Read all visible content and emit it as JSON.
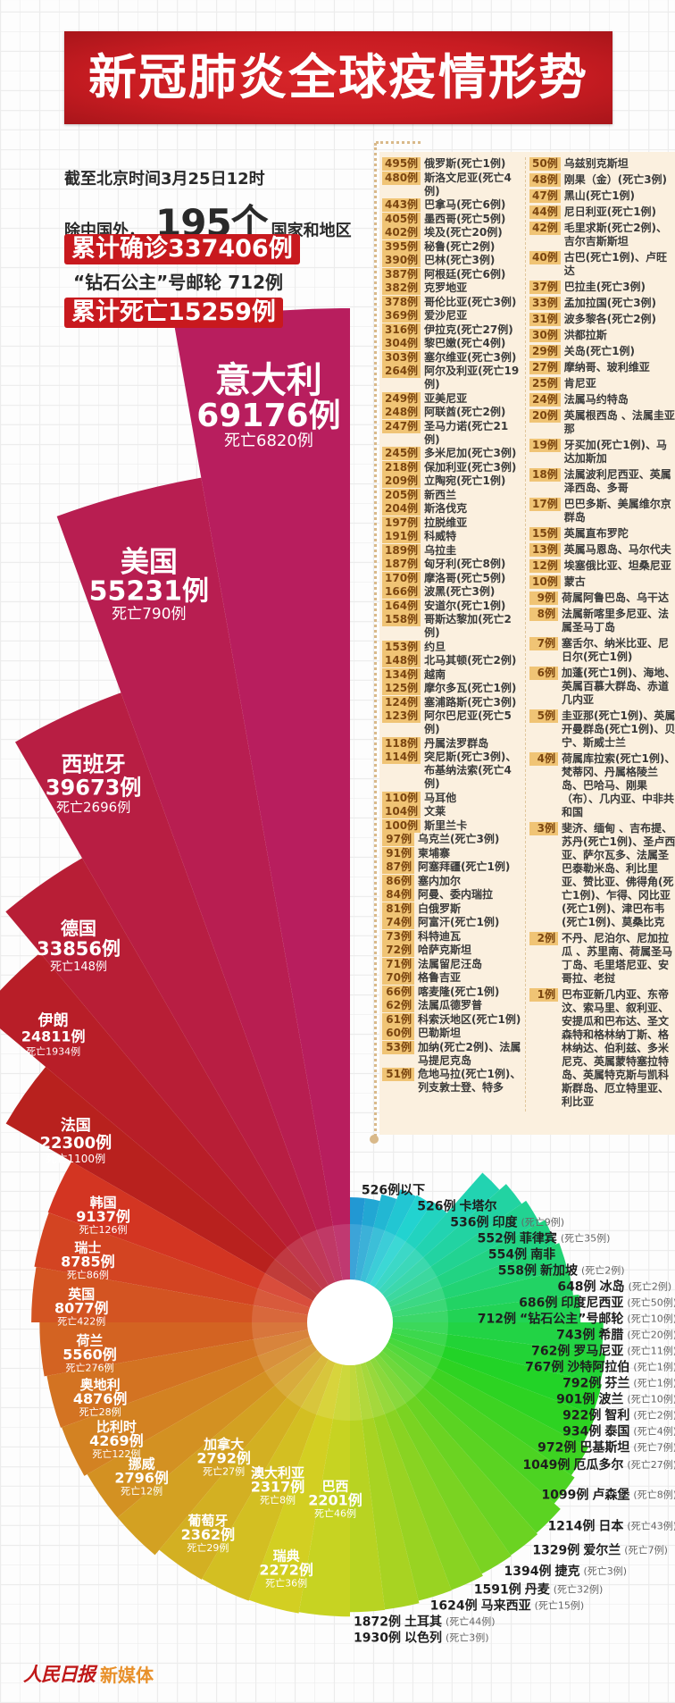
{
  "header": {
    "title": "新冠肺炎全球疫情形势"
  },
  "stats": {
    "as_of": "截至北京时间3月25日12时",
    "countries_prefix": "除中国外，",
    "countries_count": "195个",
    "countries_suffix": "国家和地区",
    "total_confirmed": "累计确诊337406例",
    "cruise_ship": "“钻石公主”号邮轮 712例",
    "total_deaths": "累计死亡15259例"
  },
  "colors": {
    "banner": "#c8191e",
    "badge": "#f0c475",
    "list_bg": "#fbf0df",
    "logo_red": "#c01818",
    "logo_orange": "#e8902a"
  },
  "list": {
    "left": [
      {
        "count": "495例",
        "text": "俄罗斯(死亡1例)"
      },
      {
        "count": "480例",
        "text": "斯洛文尼亚(死亡4例)"
      },
      {
        "count": "443例",
        "text": "巴拿马(死亡6例)"
      },
      {
        "count": "405例",
        "text": "墨西哥(死亡5例)"
      },
      {
        "count": "402例",
        "text": "埃及(死亡20例)"
      },
      {
        "count": "395例",
        "text": "秘鲁(死亡2例)"
      },
      {
        "count": "390例",
        "text": "巴林(死亡3例)"
      },
      {
        "count": "387例",
        "text": "阿根廷(死亡6例)"
      },
      {
        "count": "382例",
        "text": "克罗地亚"
      },
      {
        "count": "378例",
        "text": "哥伦比亚(死亡3例)"
      },
      {
        "count": "369例",
        "text": "爱沙尼亚"
      },
      {
        "count": "316例",
        "text": "伊拉克(死亡27例)"
      },
      {
        "count": "304例",
        "text": "黎巴嫩(死亡4例)"
      },
      {
        "count": "303例",
        "text": "塞尔维亚(死亡3例)"
      },
      {
        "count": "264例",
        "text": "阿尔及利亚(死亡19例)"
      },
      {
        "count": "249例",
        "text": "亚美尼亚"
      },
      {
        "count": "248例",
        "text": "阿联酋(死亡2例)"
      },
      {
        "count": "247例",
        "text": "圣马力诺(死亡21例)"
      },
      {
        "count": "245例",
        "text": "多米尼加(死亡3例)"
      },
      {
        "count": "218例",
        "text": "保加利亚(死亡3例)"
      },
      {
        "count": "209例",
        "text": "立陶宛(死亡1例)"
      },
      {
        "count": "205例",
        "text": "新西兰"
      },
      {
        "count": "204例",
        "text": "斯洛伐克"
      },
      {
        "count": "197例",
        "text": "拉脱维亚"
      },
      {
        "count": "191例",
        "text": "科威特"
      },
      {
        "count": "189例",
        "text": "乌拉圭"
      },
      {
        "count": "187例",
        "text": "匈牙利(死亡8例)"
      },
      {
        "count": "170例",
        "text": "摩洛哥(死亡5例)"
      },
      {
        "count": "166例",
        "text": "波黑(死亡3例)"
      },
      {
        "count": "164例",
        "text": "安道尔(死亡1例)"
      },
      {
        "count": "158例",
        "text": "哥斯达黎加(死亡2例)"
      },
      {
        "count": "153例",
        "text": "约旦"
      },
      {
        "count": "148例",
        "text": "北马其顿(死亡2例)"
      },
      {
        "count": "134例",
        "text": "越南"
      },
      {
        "count": "125例",
        "text": "摩尔多瓦(死亡1例)"
      },
      {
        "count": "124例",
        "text": "塞浦路斯(死亡3例)"
      },
      {
        "count": "123例",
        "text": "阿尔巴尼亚(死亡5例)"
      },
      {
        "count": "118例",
        "text": "丹属法罗群岛"
      },
      {
        "count": "114例",
        "text": "突尼斯(死亡3例)、布基纳法索(死亡4例)"
      },
      {
        "count": "110例",
        "text": "马耳他"
      },
      {
        "count": "104例",
        "text": "文莱"
      },
      {
        "count": "100例",
        "text": "斯里兰卡"
      },
      {
        "count": "97例",
        "text": "乌克兰(死亡3例)"
      },
      {
        "count": "91例",
        "text": "柬埔寨"
      },
      {
        "count": "87例",
        "text": "阿塞拜疆(死亡1例)"
      },
      {
        "count": "86例",
        "text": "塞内加尔"
      },
      {
        "count": "84例",
        "text": "阿曼、委内瑞拉"
      },
      {
        "count": "81例",
        "text": "白俄罗斯"
      },
      {
        "count": "74例",
        "text": "阿富汗(死亡1例)"
      },
      {
        "count": "73例",
        "text": "科特迪瓦"
      },
      {
        "count": "72例",
        "text": "哈萨克斯坦"
      },
      {
        "count": "71例",
        "text": "法属留尼汪岛"
      },
      {
        "count": "70例",
        "text": "格鲁吉亚"
      },
      {
        "count": "66例",
        "text": "喀麦隆(死亡1例)"
      },
      {
        "count": "62例",
        "text": "法属瓜德罗普"
      },
      {
        "count": "61例",
        "text": "科索沃地区(死亡1例)"
      },
      {
        "count": "60例",
        "text": "巴勒斯坦"
      },
      {
        "count": "53例",
        "text": "加纳(死亡2例)、法属马提尼克岛"
      },
      {
        "count": "51例",
        "text": "危地马拉(死亡1例)、列支敦士登、特多"
      }
    ],
    "right": [
      {
        "count": "50例",
        "text": "乌兹别克斯坦"
      },
      {
        "count": "48例",
        "text": "刚果（金）(死亡3例)"
      },
      {
        "count": "47例",
        "text": "黑山(死亡1例)"
      },
      {
        "count": "44例",
        "text": "尼日利亚(死亡1例)"
      },
      {
        "count": "42例",
        "text": "毛里求斯(死亡2例)、吉尔吉斯斯坦"
      },
      {
        "count": "40例",
        "text": "古巴(死亡1例)、卢旺达"
      },
      {
        "count": "37例",
        "text": "巴拉圭(死亡3例)"
      },
      {
        "count": "33例",
        "text": "孟加拉国(死亡3例)"
      },
      {
        "count": "31例",
        "text": "波多黎各(死亡2例)"
      },
      {
        "count": "30例",
        "text": "洪都拉斯"
      },
      {
        "count": "29例",
        "text": "关岛(死亡1例)"
      },
      {
        "count": "27例",
        "text": "摩纳哥、玻利维亚"
      },
      {
        "count": "25例",
        "text": "肯尼亚"
      },
      {
        "count": "24例",
        "text": "法属马约特岛"
      },
      {
        "count": "20例",
        "text": "英属根西岛 、法属圭亚那"
      },
      {
        "count": "19例",
        "text": "牙买加(死亡1例)、马达加斯加"
      },
      {
        "count": "18例",
        "text": "法属波利尼西亚、英属泽西岛、多哥"
      },
      {
        "count": "17例",
        "text": "巴巴多斯、美属维尔京群岛"
      },
      {
        "count": "15例",
        "text": "英属直布罗陀"
      },
      {
        "count": "13例",
        "text": "英属马恩岛、马尔代夫"
      },
      {
        "count": "12例",
        "text": "埃塞俄比亚、坦桑尼亚"
      },
      {
        "count": "10例",
        "text": "蒙古"
      },
      {
        "count": "9例",
        "text": "荷属阿鲁巴岛、乌干达"
      },
      {
        "count": "8例",
        "text": "法属新喀里多尼亚、法属圣马丁岛"
      },
      {
        "count": "7例",
        "text": "塞舌尔、纳米比亚、尼日尔(死亡1例)"
      },
      {
        "count": "6例",
        "text": "加蓬(死亡1例)、海地、英属百慕大群岛、赤道几内亚"
      },
      {
        "count": "5例",
        "text": "圭亚那(死亡1例)、英属开曼群岛(死亡1例)、贝宁、斯威士兰"
      },
      {
        "count": "4例",
        "text": "荷属库拉索(死亡1例)、梵蒂冈、丹属格陵兰岛、巴哈马、刚果（布）、几内亚、中非共和国"
      },
      {
        "count": "3例",
        "text": "斐济、缅甸 、吉布提、苏丹(死亡1例)、圣卢西亚、萨尔瓦多、法属圣巴泰勒米岛、利比里亚、赞比亚、佛得角(死亡1例)、乍得、冈比亚(死亡1例)、津巴布韦(死亡1例)、莫桑比克"
      },
      {
        "count": "2例",
        "text": "不丹、尼泊尔、尼加拉瓜 、苏里南、荷属圣马丁岛、毛里塔尼亚、安哥拉、老挝"
      },
      {
        "count": "1例",
        "text": "巴布亚新几内亚、东帝汶、索马里、叙利亚、安提瓜和巴布达、圣文森特和格林纳丁斯、格林纳达、伯利兹、多米尼克、英属蒙特塞拉特岛、英属特克斯与凯科斯群岛、厄立特里亚、利比亚"
      }
    ]
  },
  "chart_data": {
    "type": "bar",
    "coordinate": "polar",
    "title": "",
    "xlabel": "",
    "ylabel": "",
    "categories": [
      "意大利",
      "美国",
      "西班牙",
      "德国",
      "伊朗",
      "法国",
      "韩国",
      "瑞士",
      "英国",
      "荷兰",
      "奥地利",
      "比利时",
      "挪威",
      "加拿大",
      "葡萄牙",
      "澳大利亚",
      "瑞典",
      "巴西",
      "以色列",
      "土耳其",
      "马来西亚",
      "丹麦",
      "捷克",
      "爱尔兰",
      "日本",
      "卢森堡",
      "厄瓜多尔",
      "巴基斯坦",
      "泰国",
      "智利",
      "波兰",
      "芬兰",
      "沙特阿拉伯",
      "罗马尼亚",
      "希腊",
      "“钻石公主”号邮轮",
      "印度尼西亚",
      "冰岛",
      "新加坡",
      "南非",
      "菲律宾",
      "印度",
      "卡塔尔",
      ""
    ],
    "series": [
      {
        "values": [
          69176,
          55231,
          39673,
          33856,
          24811,
          22300,
          9137,
          8785,
          8077,
          5560,
          4876,
          4269,
          2796,
          2792,
          2362,
          2317,
          2272,
          2201,
          1930,
          1872,
          1624,
          1591,
          1394,
          1329,
          1214,
          1099,
          1049,
          972,
          934,
          922,
          901,
          792,
          767,
          762,
          743,
          712,
          686,
          648,
          558,
          554,
          552,
          536,
          526,
          526
        ]
      }
    ],
    "deaths": [
      6820,
      790,
      2696,
      148,
      1934,
      1100,
      126,
      86,
      422,
      276,
      28,
      122,
      12,
      27,
      29,
      8,
      36,
      46,
      3,
      44,
      15,
      32,
      3,
      7,
      43,
      8,
      27,
      7,
      4,
      2,
      10,
      1,
      1,
      11,
      20,
      10,
      50,
      2,
      2,
      null,
      35,
      9,
      null,
      null
    ],
    "case_labels": [
      "69176例",
      "55231例",
      "39673例",
      "33856例",
      "24811例",
      "22300例",
      "9137例",
      "8785例",
      "8077例",
      "5560例",
      "4876例",
      "4269例",
      "2796例",
      "2792例",
      "2362例",
      "2317例",
      "2272例",
      "2201例",
      "1930例",
      "1872例",
      "1624例",
      "1591例",
      "1394例",
      "1329例",
      "1214例",
      "1099例",
      "1049例",
      "972例",
      "934例",
      "922例",
      "901例",
      "792例",
      "767例",
      "762例",
      "743例",
      "712例",
      "686例",
      "648例",
      "558例",
      "554例",
      "552例",
      "536例",
      "526例",
      "526例以下"
    ],
    "death_labels": [
      "死亡6820例",
      "死亡790例",
      "死亡2696例",
      "死亡148例",
      "死亡1934例",
      "死亡1100例",
      "死亡126例",
      "死亡86例",
      "死亡422例",
      "死亡276例",
      "死亡28例",
      "死亡122例",
      "死亡12例",
      "死亡27例",
      "死亡29例",
      "死亡8例",
      "死亡36例",
      "死亡46例",
      "(死亡3例)",
      "(死亡44例)",
      "(死亡15例)",
      "(死亡32例)",
      "(死亡3例)",
      "(死亡7例)",
      "(死亡43例)",
      "(死亡8例)",
      "(死亡27例)",
      "(死亡7例)",
      "(死亡4例)",
      "(死亡2例)",
      "(死亡10例)",
      "(死亡1例)",
      "(死亡1例)",
      "(死亡11例)",
      "(死亡20例)",
      "(死亡10例)",
      "(死亡50例)",
      "(死亡2例)",
      "(死亡2例)",
      "",
      "(死亡35例)",
      "(死亡9例)",
      "",
      ""
    ],
    "color_order": "magenta → red → orange → yellow → green → teal → blue (descending cases, counter-clockwise from top)"
  },
  "footer": {
    "logo_text": "人民日报",
    "logo_suffix": "新媒体"
  }
}
